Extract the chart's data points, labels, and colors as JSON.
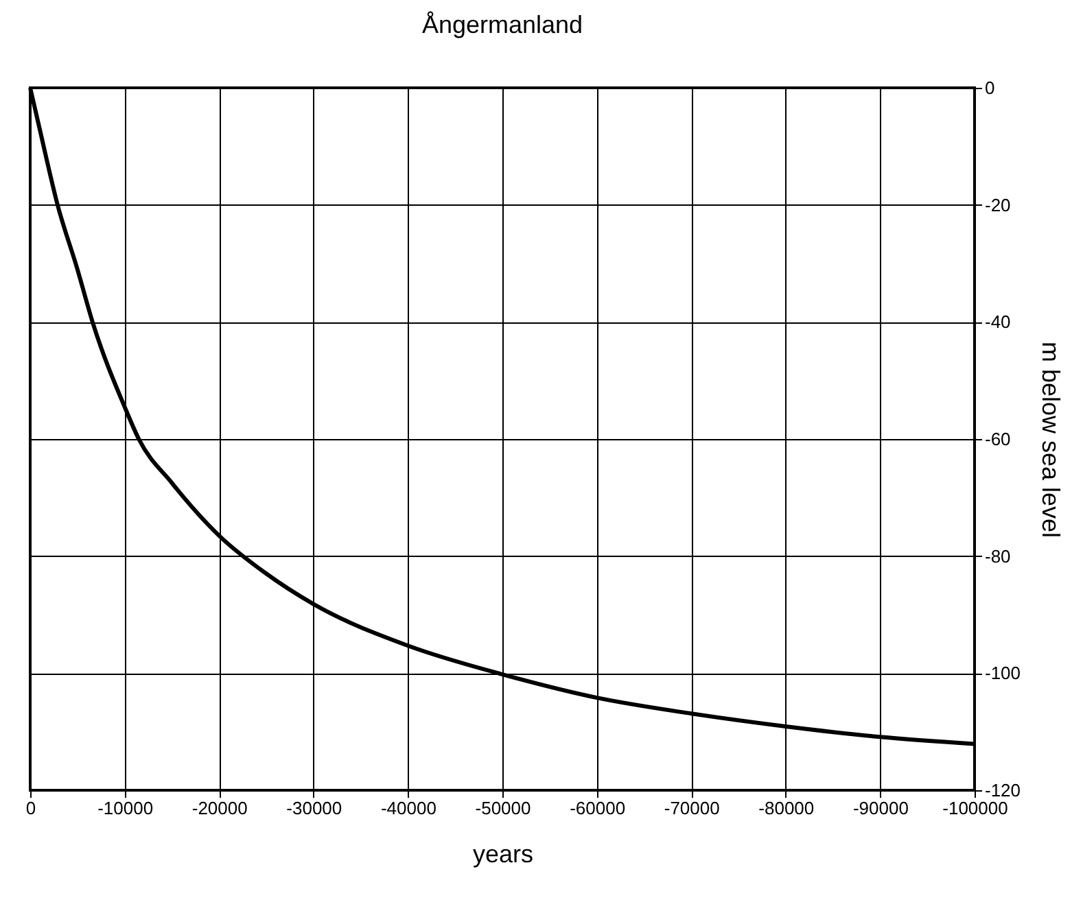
{
  "chart_data": {
    "type": "line",
    "title": "Ångermanland",
    "xlabel": "years",
    "ylabel": "m below sea level",
    "x": [
      0,
      -1000,
      -2900,
      -5000,
      -6600,
      -10000,
      -11500,
      -15000,
      -20000,
      -25000,
      -30000,
      -40000,
      -50000,
      -60000,
      -70000,
      -80000,
      -90000,
      -100000
    ],
    "series": [
      {
        "color": "#000000",
        "values": [
          0,
          -7,
          -20,
          -31,
          -40,
          -54.5,
          -60,
          -67.5,
          -76.5,
          -83,
          -88.2,
          -95.3,
          -100.2,
          -104.2,
          -106.9,
          -109.1,
          -110.9,
          -112.1
        ]
      }
    ],
    "xlim": [
      0,
      -100000
    ],
    "xticks": [
      0,
      -10000,
      -20000,
      -30000,
      -40000,
      -50000,
      -60000,
      -70000,
      -80000,
      -90000,
      -100000
    ],
    "ylim": [
      -120,
      0
    ],
    "yticks": [
      0,
      -20,
      -40,
      -60,
      -80,
      -100,
      -120
    ],
    "grid": true,
    "marker": "none",
    "line_style": "solid"
  }
}
